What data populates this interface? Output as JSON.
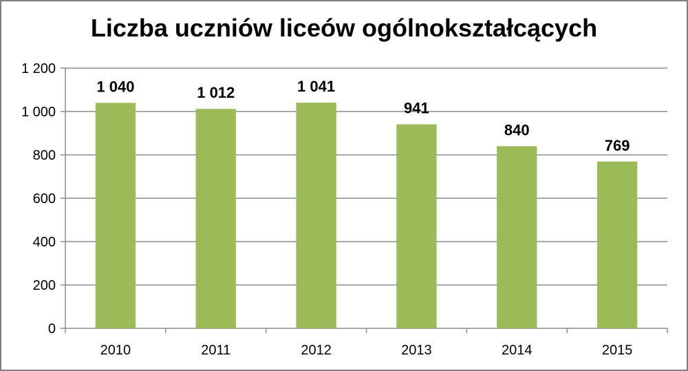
{
  "title": "Liczba uczniów liceów ogólnokształcących",
  "colors": {
    "bar": "#9bbb59",
    "grid": "#8c8c8c",
    "axis": "#8c8c8c",
    "text": "#000000"
  },
  "chart_data": {
    "type": "bar",
    "title": "Liczba uczniów liceów ogólnokształcących",
    "categories": [
      "2010",
      "2011",
      "2012",
      "2013",
      "2014",
      "2015"
    ],
    "values": [
      1040,
      1012,
      1041,
      941,
      840,
      769
    ],
    "data_labels": [
      "1 040",
      "1 012",
      "1 041",
      "941",
      "840",
      "769"
    ],
    "xlabel": "",
    "ylabel": "",
    "ylim": [
      0,
      1200
    ],
    "yticks": [
      0,
      200,
      400,
      600,
      800,
      1000,
      1200
    ],
    "ytick_labels": [
      "0",
      "200",
      "400",
      "600",
      "800",
      "1 000",
      "1 200"
    ],
    "grid": true,
    "legend": "none"
  }
}
